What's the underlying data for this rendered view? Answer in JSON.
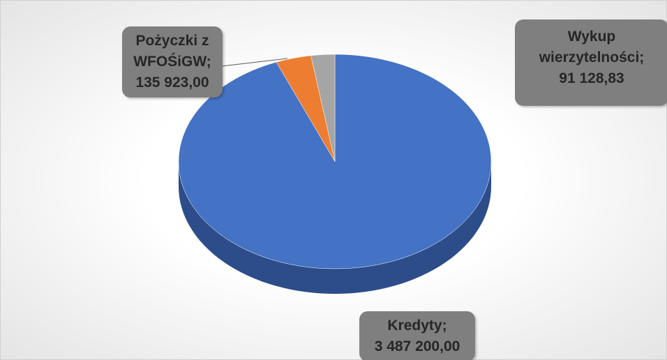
{
  "chart_data": {
    "type": "pie3d",
    "categories": [
      "Kredyty",
      "Pożyczki z WFOŚiGW",
      "Wykup wierzytelności"
    ],
    "values": [
      3487200.0,
      135923.0,
      91128.83
    ],
    "value_labels": [
      "3 487 200,00",
      "135 923,00",
      "91 128,83"
    ],
    "label_separator": ";",
    "colors": [
      "#4472c4",
      "#ed7d31",
      "#a5a5a5"
    ],
    "side_colors": [
      "#2c4d8a",
      "#a8541f",
      "#737373"
    ],
    "start_angle": 0,
    "direction": "clockwise"
  }
}
